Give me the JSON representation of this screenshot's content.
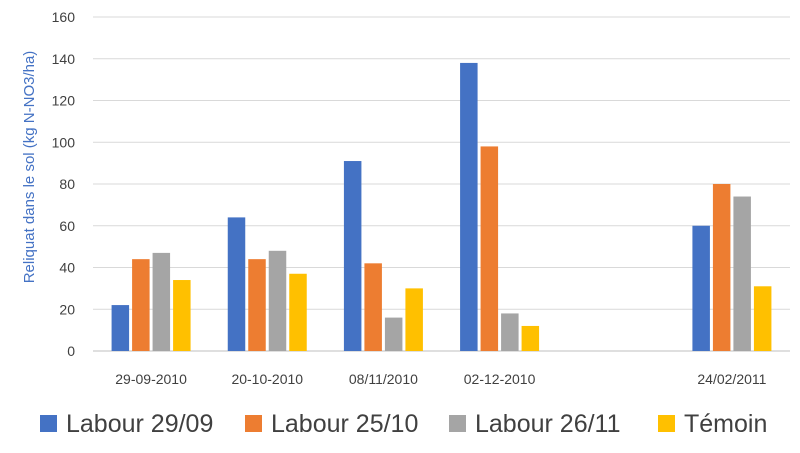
{
  "chart_data": {
    "type": "bar",
    "categories": [
      "29-09-2010",
      "20-10-2010",
      "08/11/2010",
      "02-12-2010",
      "",
      "24/02/2011"
    ],
    "series": [
      {
        "name": "Labour 29/09",
        "color": "#4472C4",
        "values": [
          22,
          64,
          91,
          138,
          null,
          60
        ]
      },
      {
        "name": "Labour 25/10",
        "color": "#ED7D31",
        "values": [
          44,
          44,
          42,
          98,
          null,
          80
        ]
      },
      {
        "name": "Labour 26/11",
        "color": "#A5A5A5",
        "values": [
          47,
          48,
          16,
          18,
          null,
          74
        ]
      },
      {
        "name": "Témoin",
        "color": "#FFC000",
        "values": [
          34,
          37,
          30,
          12,
          null,
          31
        ]
      }
    ],
    "ylabel": "Reliquat dans le sol (kg N-NO3/ha)",
    "xlabel": "",
    "title": "",
    "ylim": [
      0,
      160
    ],
    "yticks": [
      0,
      20,
      40,
      60,
      80,
      100,
      120,
      140,
      160
    ],
    "grid": true,
    "legend": "bottom"
  }
}
